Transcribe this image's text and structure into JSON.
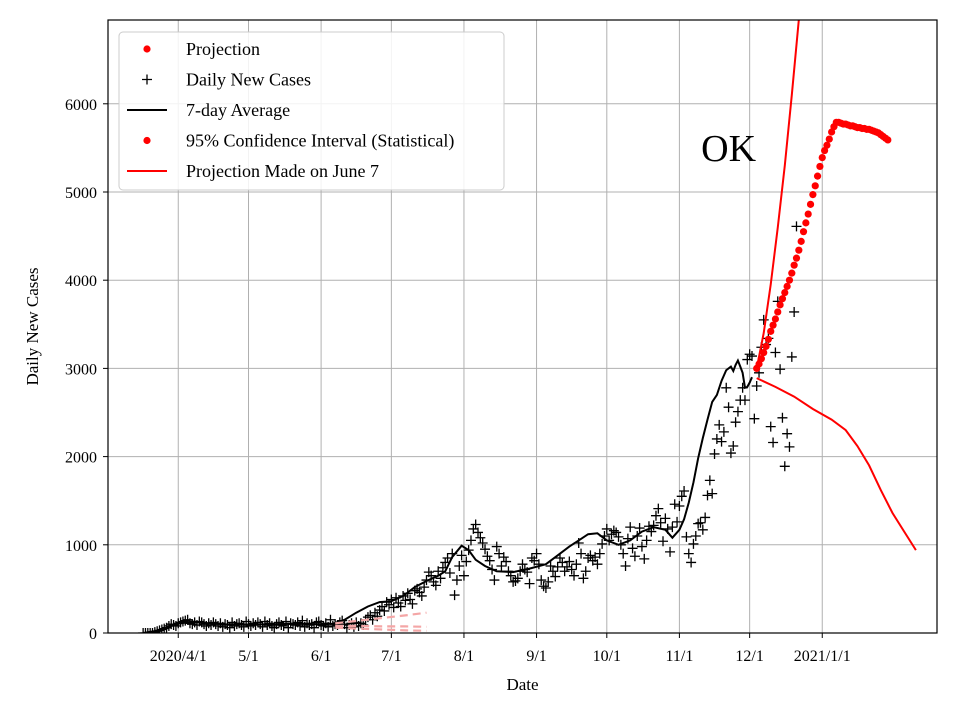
{
  "chart_data": {
    "type": "line",
    "title": "",
    "xlabel": "Date",
    "ylabel": "Daily New Cases",
    "x_tick_labels": [
      "2020/4/1",
      "5/1",
      "6/1",
      "7/1",
      "8/1",
      "9/1",
      "10/1",
      "11/1",
      "12/1",
      "2021/1/1"
    ],
    "x_tick_dates": [
      "2020-04-01",
      "2020-05-01",
      "2020-06-01",
      "2020-07-01",
      "2020-08-01",
      "2020-09-01",
      "2020-10-01",
      "2020-11-01",
      "2020-12-01",
      "2021-01-01"
    ],
    "xlim": [
      "2020-03-02",
      "2021-02-19"
    ],
    "y_ticks": [
      0,
      1000,
      2000,
      3000,
      4000,
      5000,
      6000
    ],
    "ylim": [
      0,
      6950
    ],
    "grid": true,
    "legend_placement": "top-left",
    "legend": [
      {
        "label": "Projection",
        "marker": "dot",
        "color": "#ff0000"
      },
      {
        "label": "Daily New Cases",
        "marker": "plus",
        "color": "#000000"
      },
      {
        "label": "7-day Average",
        "marker": "line",
        "color": "#000000"
      },
      {
        "label": "95% Confidence Interval (Statistical)",
        "marker": "dot",
        "color": "#ff0000"
      },
      {
        "label": "Projection Made on June 7",
        "marker": "line",
        "color": "#ff0000"
      }
    ],
    "annotation": {
      "text": "OK",
      "x": "2020-11-22",
      "y": 5350
    },
    "series": [
      {
        "name": "Daily New Cases",
        "kind": "scatter-plus",
        "color": "#000000",
        "x_start": "2020-03-17",
        "values": [
          0,
          0,
          0,
          0,
          0,
          10,
          20,
          30,
          40,
          50,
          60,
          80,
          100,
          90,
          80,
          110,
          120,
          130,
          140,
          150,
          110,
          100,
          120,
          90,
          130,
          120,
          100,
          80,
          110,
          90,
          120,
          100,
          80,
          110,
          70,
          100,
          90,
          60,
          120,
          80,
          100,
          110,
          90,
          70,
          130,
          100,
          80,
          110,
          90,
          120,
          100,
          70,
          130,
          90,
          110,
          80,
          60,
          100,
          120,
          90,
          80,
          130,
          60,
          110,
          100,
          90,
          120,
          80,
          140,
          70,
          110,
          90,
          100,
          60,
          120,
          130,
          90,
          80,
          110,
          70,
          150,
          80,
          100,
          90,
          120,
          140,
          100,
          60,
          90,
          110,
          70,
          120,
          80,
          110,
          90,
          150,
          180,
          200,
          150,
          230,
          190,
          260,
          300,
          250,
          350,
          320,
          380,
          290,
          400,
          340,
          300,
          420,
          370,
          450,
          380,
          330,
          480,
          500,
          460,
          420,
          520,
          600,
          690,
          650,
          580,
          540,
          700,
          620,
          740,
          800,
          850,
          680,
          900,
          430,
          600,
          760,
          880,
          650,
          810,
          940,
          1050,
          1180,
          1230,
          1140,
          1080,
          1020,
          950,
          870,
          820,
          720,
          600,
          980,
          900,
          760,
          860,
          810,
          700,
          650,
          580,
          590,
          620,
          700,
          780,
          720,
          690,
          560,
          850,
          820,
          900,
          780,
          600,
          530,
          510,
          580,
          760,
          700,
          640,
          750,
          850,
          800,
          700,
          750,
          810,
          720,
          650,
          780,
          1020,
          900,
          620,
          700,
          850,
          880,
          820,
          860,
          780,
          900,
          1010,
          1100,
          1180,
          1050,
          1120,
          1160,
          1140,
          1090,
          1000,
          900,
          760,
          1070,
          1200,
          960,
          870,
          1100,
          1190,
          980,
          840,
          1050,
          1210,
          1150,
          1220,
          1330,
          1410,
          1250,
          1040,
          1300,
          1180,
          920,
          1200,
          1460,
          1260,
          1440,
          1550,
          1610,
          1090,
          900,
          800,
          1010,
          1100,
          1240,
          1250,
          1170,
          1310,
          1560,
          1730,
          1580,
          2030,
          2200,
          2360,
          2170,
          2280,
          2780,
          2560,
          2040,
          2120,
          2390,
          2510,
          2640,
          2780,
          2640,
          3100,
          3160,
          3140,
          2430,
          2800,
          2950,
          3240,
          3550,
          3270,
          3340,
          2340,
          2160,
          3180,
          3760,
          2990,
          2440,
          1890,
          2260,
          2110,
          3130,
          3640,
          4610
        ]
      },
      {
        "name": "7-day Average",
        "kind": "line",
        "color": "#000000",
        "points": [
          [
            "2020-03-17",
            0
          ],
          [
            "2020-03-24",
            30
          ],
          [
            "2020-03-31",
            100
          ],
          [
            "2020-04-07",
            130
          ],
          [
            "2020-04-14",
            110
          ],
          [
            "2020-04-21",
            100
          ],
          [
            "2020-05-01",
            95
          ],
          [
            "2020-05-11",
            100
          ],
          [
            "2020-05-21",
            105
          ],
          [
            "2020-06-01",
            100
          ],
          [
            "2020-06-06",
            105
          ],
          [
            "2020-06-11",
            150
          ],
          [
            "2020-06-16",
            230
          ],
          [
            "2020-06-21",
            300
          ],
          [
            "2020-06-26",
            350
          ],
          [
            "2020-07-01",
            360
          ],
          [
            "2020-07-06",
            420
          ],
          [
            "2020-07-11",
            520
          ],
          [
            "2020-07-16",
            590
          ],
          [
            "2020-07-21",
            650
          ],
          [
            "2020-07-24",
            700
          ],
          [
            "2020-07-27",
            860
          ],
          [
            "2020-07-31",
            990
          ],
          [
            "2020-08-03",
            940
          ],
          [
            "2020-08-06",
            830
          ],
          [
            "2020-08-10",
            760
          ],
          [
            "2020-08-15",
            700
          ],
          [
            "2020-08-22",
            690
          ],
          [
            "2020-08-29",
            730
          ],
          [
            "2020-09-05",
            780
          ],
          [
            "2020-09-10",
            880
          ],
          [
            "2020-09-15",
            980
          ],
          [
            "2020-09-19",
            1050
          ],
          [
            "2020-09-23",
            1120
          ],
          [
            "2020-09-27",
            1130
          ],
          [
            "2020-10-01",
            1050
          ],
          [
            "2020-10-06",
            1000
          ],
          [
            "2020-10-11",
            1050
          ],
          [
            "2020-10-16",
            1150
          ],
          [
            "2020-10-21",
            1200
          ],
          [
            "2020-10-26",
            1170
          ],
          [
            "2020-10-29",
            1080
          ],
          [
            "2020-11-01",
            1170
          ],
          [
            "2020-11-03",
            1290
          ],
          [
            "2020-11-05",
            1480
          ],
          [
            "2020-11-07",
            1710
          ],
          [
            "2020-11-09",
            1980
          ],
          [
            "2020-11-11",
            2210
          ],
          [
            "2020-11-13",
            2420
          ],
          [
            "2020-11-15",
            2620
          ],
          [
            "2020-11-17",
            2700
          ],
          [
            "2020-11-19",
            2860
          ],
          [
            "2020-11-21",
            2980
          ],
          [
            "2020-11-23",
            3020
          ],
          [
            "2020-11-24",
            2970
          ],
          [
            "2020-11-25",
            3040
          ],
          [
            "2020-11-26",
            3090
          ],
          [
            "2020-11-27",
            3020
          ],
          [
            "2020-11-28",
            2950
          ],
          [
            "2020-11-29",
            2780
          ],
          [
            "2020-11-30",
            2790
          ],
          [
            "2020-12-01",
            2840
          ],
          [
            "2020-12-02",
            2900
          ]
        ]
      },
      {
        "name": "Projection",
        "kind": "scatter-dot",
        "color": "#ff0000",
        "x_start": "2020-12-04",
        "values": [
          3000,
          3050,
          3110,
          3180,
          3250,
          3330,
          3420,
          3490,
          3560,
          3640,
          3720,
          3790,
          3860,
          3930,
          4000,
          4080,
          4170,
          4250,
          4340,
          4440,
          4550,
          4650,
          4750,
          4860,
          4970,
          5070,
          5180,
          5290,
          5390,
          5470,
          5530,
          5600,
          5680,
          5740,
          5790,
          5790,
          5780,
          5770,
          5770,
          5760,
          5750,
          5750,
          5740,
          5730,
          5730,
          5720,
          5720,
          5710,
          5710,
          5700,
          5690,
          5680,
          5670,
          5650,
          5630,
          5610,
          5590
        ]
      },
      {
        "name": "Projection Made on June 7",
        "kind": "line",
        "color": "#ff0000",
        "points": [
          [
            "2020-12-04",
            2890
          ],
          [
            "2020-12-12",
            2790
          ],
          [
            "2020-12-20",
            2680
          ],
          [
            "2020-12-28",
            2540
          ],
          [
            "2021-01-05",
            2420
          ],
          [
            "2021-01-11",
            2300
          ],
          [
            "2021-01-16",
            2120
          ],
          [
            "2021-01-21",
            1900
          ],
          [
            "2021-01-26",
            1620
          ],
          [
            "2021-01-31",
            1360
          ],
          [
            "2021-02-05",
            1150
          ],
          [
            "2021-02-10",
            940
          ]
        ]
      },
      {
        "kind": "line",
        "color": "#ff0000",
        "points": [
          [
            "2020-12-04",
            3000
          ],
          [
            "2020-12-07",
            3400
          ],
          [
            "2020-12-10",
            3950
          ],
          [
            "2020-12-13",
            4600
          ],
          [
            "2020-12-16",
            5300
          ],
          [
            "2020-12-19",
            6100
          ],
          [
            "2020-12-22",
            6950
          ]
        ]
      },
      {
        "kind": "dashed-band",
        "color": "#f4a6a6",
        "lines": [
          [
            [
              "2020-06-07",
              110
            ],
            [
              "2020-06-17",
              140
            ],
            [
              "2020-06-27",
              170
            ],
            [
              "2020-07-07",
              200
            ],
            [
              "2020-07-16",
              230
            ]
          ],
          [
            [
              "2020-06-07",
              80
            ],
            [
              "2020-06-17",
              80
            ],
            [
              "2020-06-27",
              75
            ],
            [
              "2020-07-07",
              75
            ],
            [
              "2020-07-16",
              70
            ]
          ],
          [
            [
              "2020-06-07",
              60
            ],
            [
              "2020-06-17",
              50
            ],
            [
              "2020-06-27",
              40
            ],
            [
              "2020-07-07",
              30
            ],
            [
              "2020-07-16",
              25
            ]
          ]
        ]
      }
    ]
  }
}
